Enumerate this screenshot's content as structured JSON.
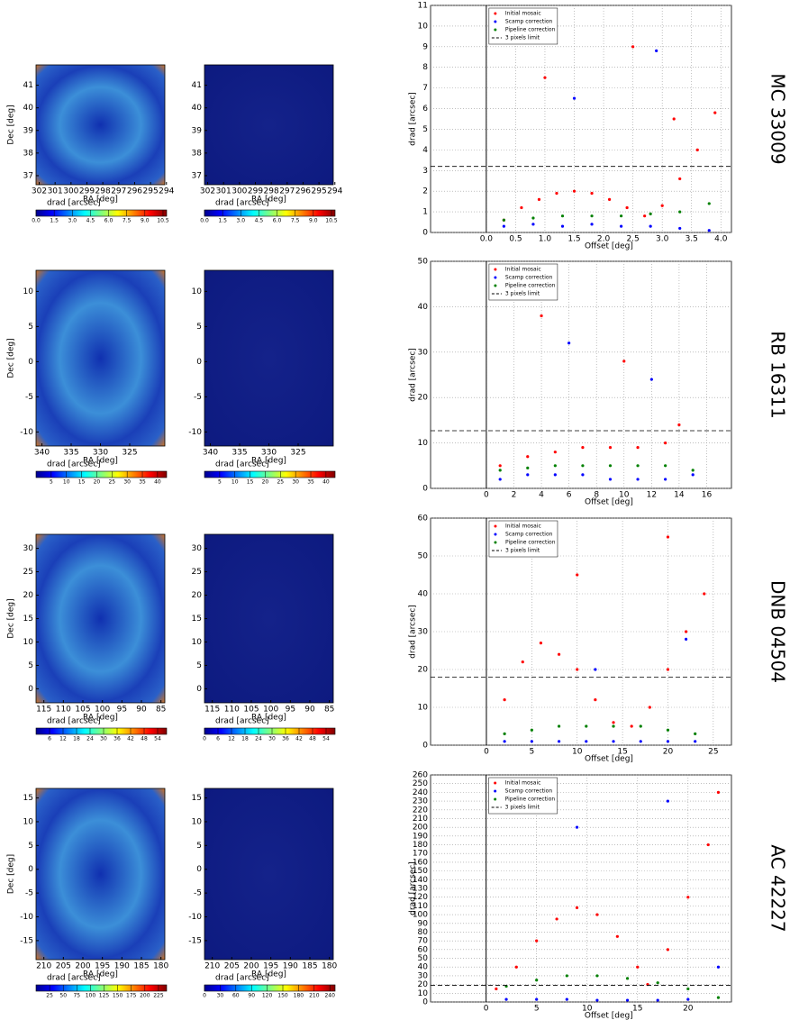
{
  "chart_data": [
    {
      "type": "scatter",
      "label": "MC 33009",
      "maps": [
        {
          "xlabel": "RA [deg]",
          "ylabel": "Dec [deg]",
          "xlim": [
            302.2,
            294.1
          ],
          "ylim": [
            36.6,
            41.9
          ],
          "xticks": [
            302,
            301,
            300,
            299,
            298,
            297,
            296,
            295,
            294
          ],
          "yticks": [
            37,
            38,
            39,
            40,
            41
          ],
          "colorbar": {
            "label": "drad [arcsec]",
            "lim": [
              0,
              10.8
            ],
            "ticks": [
              {
                "value": 0,
                "label": "0.0"
              },
              1.5,
              {
                "value": 3,
                "label": "3.0"
              },
              4.5,
              {
                "value": 6,
                "label": "6.0"
              },
              7.5,
              {
                "value": 9,
                "label": "9.0"
              },
              10.5
            ]
          }
        },
        {
          "xlabel": "RA [deg]",
          "xlim": [
            302.2,
            294.1
          ],
          "ylim": [
            36.6,
            41.9
          ],
          "xticks": [
            302,
            301,
            300,
            299,
            298,
            297,
            296,
            295,
            294
          ],
          "yticks": [
            37,
            38,
            39,
            40,
            41
          ],
          "colorbar": {
            "label": "drad [arcsec]",
            "lim": [
              0,
              10.8
            ],
            "ticks": [
              {
                "value": 0,
                "label": "0.0"
              },
              1.5,
              {
                "value": 3,
                "label": "3.0"
              },
              4.5,
              {
                "value": 6,
                "label": "6.0"
              },
              7.5,
              {
                "value": 9,
                "label": "9.0"
              },
              10.5
            ]
          }
        }
      ],
      "xlabel": "Offset [deg]",
      "ylabel": "drad [arcsec]",
      "xlim": [
        -0.95,
        4.18
      ],
      "ylim": [
        0,
        11
      ],
      "xticks": [
        {
          "value": 0,
          "label": "0.0"
        },
        0.5,
        {
          "value": 1,
          "label": "1.0"
        },
        1.5,
        {
          "value": 2,
          "label": "2.0"
        },
        2.5,
        {
          "value": 3,
          "label": "3.0"
        },
        3.5,
        {
          "value": 4,
          "label": "4.0"
        }
      ],
      "yticks": [
        0,
        1,
        2,
        3,
        4,
        5,
        6,
        7,
        8,
        9,
        10,
        11
      ],
      "grid": true,
      "series": [
        {
          "name": "Initial mosaic",
          "color": "#ff0000",
          "x": [
            0.3,
            0.6,
            0.9,
            1.2,
            1.5,
            1.8,
            2.1,
            2.4,
            2.7,
            3.0,
            3.3,
            3.6,
            3.9,
            1.0,
            2.5,
            3.2
          ],
          "values": [
            0.6,
            1.2,
            1.6,
            1.9,
            2.0,
            1.9,
            1.6,
            1.2,
            0.8,
            1.3,
            2.6,
            4.0,
            5.8,
            7.5,
            9.0,
            5.5
          ]
        },
        {
          "name": "Scamp correction",
          "color": "#0000ff",
          "x": [
            0.3,
            0.8,
            1.3,
            1.8,
            2.3,
            2.8,
            3.3,
            3.8,
            1.5,
            2.9
          ],
          "values": [
            0.3,
            0.4,
            0.3,
            0.4,
            0.3,
            0.3,
            0.2,
            0.1,
            6.5,
            8.8
          ]
        },
        {
          "name": "Pipeline correction",
          "color": "#008000",
          "x": [
            0.3,
            0.8,
            1.3,
            1.8,
            2.3,
            2.8,
            3.3,
            3.8
          ],
          "values": [
            0.6,
            0.7,
            0.8,
            0.8,
            0.8,
            0.9,
            1.0,
            1.4
          ]
        }
      ],
      "limit": {
        "name": "3 pixels limit",
        "value": 3.2
      }
    },
    {
      "type": "scatter",
      "label": "RB 16311",
      "maps": [
        {
          "xlabel": "RA [deg]",
          "ylabel": "Dec [deg]",
          "xlim": [
            341,
            319
          ],
          "ylim": [
            -12,
            13
          ],
          "xticks": [
            340,
            335,
            330,
            325
          ],
          "yticks": [
            -10,
            -5,
            0,
            5,
            10
          ],
          "colorbar": {
            "label": "drad [arcsec]",
            "lim": [
              0,
              43
            ],
            "ticks": [
              5,
              10,
              15,
              20,
              25,
              30,
              35,
              40
            ]
          }
        },
        {
          "xlabel": "RA [deg]",
          "xlim": [
            341,
            319
          ],
          "ylim": [
            -12,
            13
          ],
          "xticks": [
            340,
            335,
            330,
            325
          ],
          "yticks": [
            -10,
            -5,
            0,
            5,
            10
          ],
          "colorbar": {
            "label": "drad [arcsec]",
            "lim": [
              0,
              43
            ],
            "ticks": [
              5,
              10,
              15,
              20,
              25,
              30,
              35,
              40
            ]
          }
        }
      ],
      "xlabel": "Offset [deg]",
      "ylabel": "drad [arcsec]",
      "xlim": [
        -4.05,
        17.8
      ],
      "ylim": [
        0,
        50
      ],
      "xticks": [
        0,
        2,
        4,
        6,
        8,
        10,
        12,
        14,
        16
      ],
      "yticks": [
        0,
        10,
        20,
        30,
        40,
        50
      ],
      "grid": true,
      "series": [
        {
          "name": "Initial mosaic",
          "color": "#ff0000",
          "x": [
            1,
            3,
            5,
            7,
            9,
            11,
            13,
            14,
            4,
            10
          ],
          "values": [
            5,
            7,
            8,
            9,
            9,
            9,
            10,
            14,
            38,
            28
          ]
        },
        {
          "name": "Scamp correction",
          "color": "#0000ff",
          "x": [
            1,
            3,
            5,
            7,
            9,
            11,
            13,
            15,
            6,
            12
          ],
          "values": [
            2,
            3,
            3,
            3,
            2,
            2,
            2,
            3,
            32,
            24
          ]
        },
        {
          "name": "Pipeline correction",
          "color": "#008000",
          "x": [
            1,
            3,
            5,
            7,
            9,
            11,
            13,
            15
          ],
          "values": [
            4,
            4.5,
            5,
            5,
            5,
            5,
            5,
            4
          ]
        }
      ],
      "limit": {
        "name": "3 pixels limit",
        "value": 12.7
      }
    },
    {
      "type": "scatter",
      "label": "DNB 04504",
      "maps": [
        {
          "xlabel": "RA [deg]",
          "ylabel": "Dec [deg]",
          "xlim": [
            117,
            84
          ],
          "ylim": [
            -3,
            33
          ],
          "xticks": [
            115,
            110,
            105,
            100,
            95,
            90,
            85
          ],
          "yticks": [
            0,
            5,
            10,
            15,
            20,
            25,
            30
          ],
          "colorbar": {
            "label": "drad [arcsec]",
            "lim": [
              0,
              58
            ],
            "ticks": [
              6,
              12,
              18,
              24,
              30,
              36,
              42,
              48,
              54
            ]
          }
        },
        {
          "xlabel": "RA [deg]",
          "xlim": [
            117,
            84
          ],
          "ylim": [
            -3,
            33
          ],
          "xticks": [
            115,
            110,
            105,
            100,
            95,
            90,
            85
          ],
          "yticks": [
            0,
            5,
            10,
            15,
            20,
            25,
            30
          ],
          "colorbar": {
            "label": "drad [arcsec]",
            "lim": [
              0,
              58
            ],
            "ticks": [
              0,
              6,
              12,
              18,
              24,
              30,
              36,
              42,
              48,
              54
            ]
          }
        }
      ],
      "xlabel": "Offset [deg]",
      "ylabel": "drad [arcsec]",
      "xlim": [
        -6.15,
        27
      ],
      "ylim": [
        0,
        60
      ],
      "xticks": [
        0,
        5,
        10,
        15,
        20,
        25
      ],
      "yticks": [
        0,
        10,
        20,
        30,
        40,
        50,
        60
      ],
      "grid": true,
      "series": [
        {
          "name": "Initial mosaic",
          "color": "#ff0000",
          "x": [
            2,
            4,
            6,
            8,
            10,
            12,
            14,
            16,
            18,
            20,
            22,
            24,
            10,
            20
          ],
          "values": [
            12,
            22,
            27,
            24,
            20,
            12,
            6,
            5,
            10,
            20,
            30,
            40,
            45,
            55
          ]
        },
        {
          "name": "Scamp correction",
          "color": "#0000ff",
          "x": [
            2,
            5,
            8,
            11,
            14,
            17,
            20,
            23,
            12,
            22
          ],
          "values": [
            1,
            1,
            1,
            1,
            1,
            1,
            1,
            1,
            20,
            28
          ]
        },
        {
          "name": "Pipeline correction",
          "color": "#008000",
          "x": [
            2,
            5,
            8,
            11,
            14,
            17,
            20,
            23
          ],
          "values": [
            3,
            4,
            5,
            5,
            5,
            5,
            4,
            3
          ]
        }
      ],
      "limit": {
        "name": "3 pixels limit",
        "value": 18
      }
    },
    {
      "type": "scatter",
      "label": "AC 42227",
      "maps": [
        {
          "xlabel": "RA [deg]",
          "ylabel": "Dec [deg]",
          "xlim": [
            212,
            179
          ],
          "ylim": [
            -19,
            17
          ],
          "xticks": [
            210,
            205,
            200,
            195,
            190,
            185,
            180
          ],
          "yticks": [
            -15,
            -10,
            -5,
            0,
            5,
            10,
            15
          ],
          "colorbar": {
            "label": "drad [arcsec]",
            "lim": [
              0,
              240
            ],
            "ticks": [
              25,
              50,
              75,
              100,
              125,
              150,
              175,
              200,
              225
            ]
          }
        },
        {
          "xlabel": "RA [deg]",
          "xlim": [
            212,
            179
          ],
          "ylim": [
            -19,
            17
          ],
          "xticks": [
            210,
            205,
            200,
            195,
            190,
            185,
            180
          ],
          "yticks": [
            -15,
            -10,
            -5,
            0,
            5,
            10,
            15
          ],
          "colorbar": {
            "label": "drad [arcsec]",
            "lim": [
              0,
              250
            ],
            "ticks": [
              0,
              30,
              60,
              90,
              120,
              150,
              180,
              210,
              240
            ]
          }
        }
      ],
      "xlabel": "Offset [deg]",
      "ylabel": "drad [arcsec]",
      "xlim": [
        -5.5,
        24.3
      ],
      "ylim": [
        0,
        260
      ],
      "xticks": [
        0,
        5,
        10,
        15,
        20
      ],
      "yticks": [
        0,
        10,
        20,
        30,
        40,
        50,
        60,
        70,
        80,
        90,
        100,
        110,
        120,
        130,
        140,
        150,
        160,
        170,
        180,
        190,
        200,
        210,
        220,
        230,
        240,
        250,
        260
      ],
      "grid": true,
      "series": [
        {
          "name": "Initial mosaic",
          "color": "#ff0000",
          "x": [
            1,
            3,
            5,
            7,
            9,
            11,
            13,
            15,
            16,
            18,
            20,
            22,
            23
          ],
          "values": [
            15,
            40,
            70,
            95,
            108,
            100,
            75,
            40,
            20,
            60,
            120,
            180,
            240
          ]
        },
        {
          "name": "Scamp correction",
          "color": "#0000ff",
          "x": [
            2,
            5,
            8,
            11,
            14,
            17,
            20,
            23,
            9,
            18
          ],
          "values": [
            3,
            3,
            3,
            2,
            2,
            2,
            3,
            40,
            200,
            230
          ]
        },
        {
          "name": "Pipeline correction",
          "color": "#008000",
          "x": [
            2,
            5,
            8,
            11,
            14,
            17,
            20,
            23
          ],
          "values": [
            18,
            25,
            30,
            30,
            27,
            22,
            15,
            5
          ]
        }
      ],
      "limit": {
        "name": "3 pixels limit",
        "value": 19
      }
    }
  ]
}
